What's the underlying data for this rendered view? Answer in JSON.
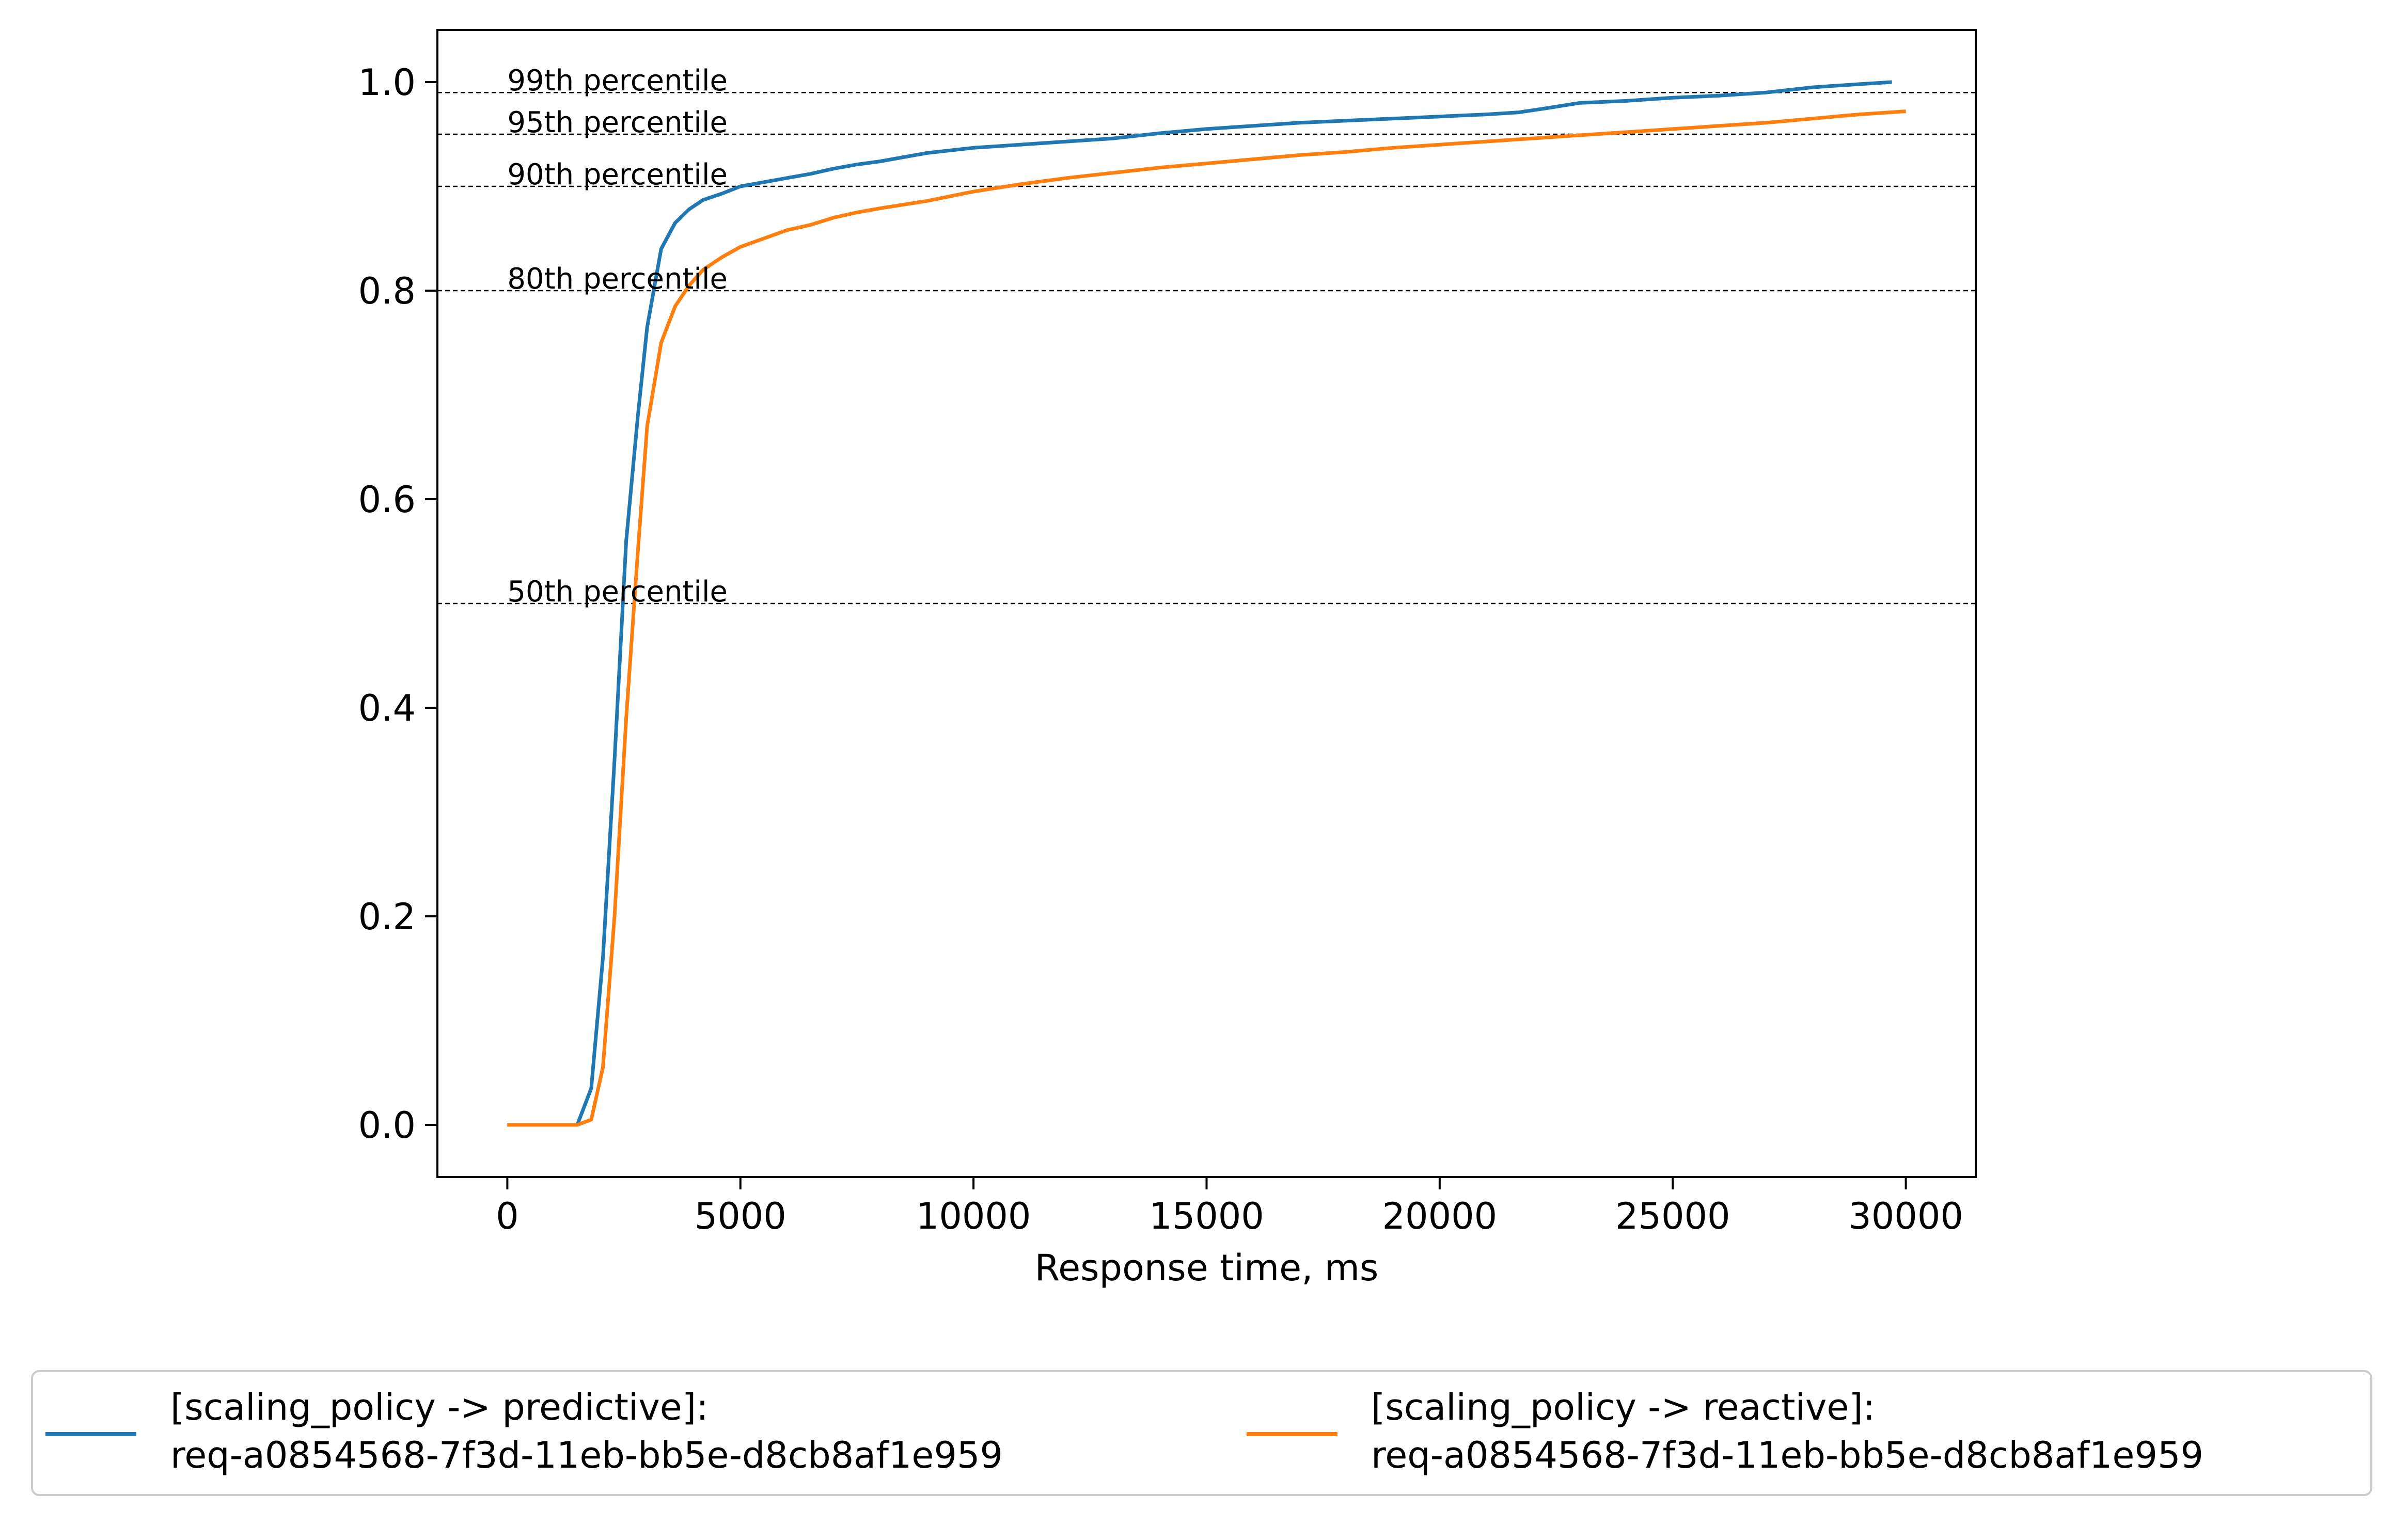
{
  "chart_data": {
    "type": "line",
    "xlabel": "Response time, ms",
    "ylabel": "",
    "xlim": [
      -1500,
      31500
    ],
    "ylim": [
      -0.05,
      1.05
    ],
    "x_ticks": [
      0,
      5000,
      10000,
      15000,
      20000,
      25000,
      30000
    ],
    "x_tick_labels": [
      "0",
      "5000",
      "10000",
      "15000",
      "20000",
      "25000",
      "30000"
    ],
    "y_ticks": [
      0.0,
      0.2,
      0.4,
      0.6,
      0.8,
      1.0
    ],
    "y_tick_labels": [
      "0.0",
      "0.2",
      "0.4",
      "0.6",
      "0.8",
      "1.0"
    ],
    "grid": false,
    "legend_position": "below",
    "percentile_lines": [
      {
        "label": "99th percentile",
        "y": 0.99
      },
      {
        "label": "95th percentile",
        "y": 0.95
      },
      {
        "label": "90th percentile",
        "y": 0.9
      },
      {
        "label": "80th percentile",
        "y": 0.8
      },
      {
        "label": "50th percentile",
        "y": 0.5
      }
    ],
    "series": [
      {
        "name": "[scaling_policy -> predictive]: req-a0854568-7f3d-11eb-bb5e-d8cb8af1e959",
        "legend_line1": "[scaling_policy -> predictive]:",
        "legend_line2": "req-a0854568-7f3d-11eb-bb5e-d8cb8af1e959",
        "color": "#1f77b4",
        "points": [
          [
            0,
            0.0
          ],
          [
            1500,
            0.0
          ],
          [
            1800,
            0.035
          ],
          [
            2050,
            0.16
          ],
          [
            2300,
            0.35
          ],
          [
            2550,
            0.56
          ],
          [
            2800,
            0.68
          ],
          [
            3000,
            0.765
          ],
          [
            3300,
            0.84
          ],
          [
            3600,
            0.865
          ],
          [
            3900,
            0.878
          ],
          [
            4200,
            0.887
          ],
          [
            4600,
            0.893
          ],
          [
            5000,
            0.9
          ],
          [
            5500,
            0.904
          ],
          [
            6000,
            0.908
          ],
          [
            6500,
            0.912
          ],
          [
            7000,
            0.917
          ],
          [
            7500,
            0.921
          ],
          [
            8000,
            0.924
          ],
          [
            9000,
            0.932
          ],
          [
            10000,
            0.937
          ],
          [
            11000,
            0.94
          ],
          [
            12000,
            0.943
          ],
          [
            13000,
            0.946
          ],
          [
            14000,
            0.951
          ],
          [
            15000,
            0.955
          ],
          [
            16000,
            0.958
          ],
          [
            17000,
            0.961
          ],
          [
            18000,
            0.963
          ],
          [
            19000,
            0.965
          ],
          [
            20000,
            0.967
          ],
          [
            21000,
            0.969
          ],
          [
            21700,
            0.971
          ],
          [
            22300,
            0.975
          ],
          [
            23000,
            0.98
          ],
          [
            24000,
            0.982
          ],
          [
            25000,
            0.985
          ],
          [
            26000,
            0.987
          ],
          [
            27000,
            0.99
          ],
          [
            28000,
            0.995
          ],
          [
            29000,
            0.998
          ],
          [
            29700,
            1.0
          ]
        ]
      },
      {
        "name": "[scaling_policy -> reactive]: req-a0854568-7f3d-11eb-bb5e-d8cb8af1e959",
        "legend_line1": "[scaling_policy -> reactive]:",
        "legend_line2": "req-a0854568-7f3d-11eb-bb5e-d8cb8af1e959",
        "color": "#ff7f0e",
        "points": [
          [
            0,
            0.0
          ],
          [
            1500,
            0.0
          ],
          [
            1800,
            0.005
          ],
          [
            2050,
            0.055
          ],
          [
            2300,
            0.2
          ],
          [
            2550,
            0.39
          ],
          [
            2800,
            0.55
          ],
          [
            3000,
            0.67
          ],
          [
            3300,
            0.75
          ],
          [
            3600,
            0.785
          ],
          [
            3900,
            0.805
          ],
          [
            4200,
            0.82
          ],
          [
            4600,
            0.832
          ],
          [
            5000,
            0.842
          ],
          [
            5500,
            0.85
          ],
          [
            6000,
            0.858
          ],
          [
            6500,
            0.863
          ],
          [
            7000,
            0.87
          ],
          [
            7500,
            0.875
          ],
          [
            8000,
            0.879
          ],
          [
            9000,
            0.886
          ],
          [
            10000,
            0.895
          ],
          [
            11000,
            0.902
          ],
          [
            12000,
            0.908
          ],
          [
            13000,
            0.913
          ],
          [
            14000,
            0.918
          ],
          [
            15000,
            0.922
          ],
          [
            16000,
            0.926
          ],
          [
            17000,
            0.93
          ],
          [
            18000,
            0.933
          ],
          [
            19000,
            0.937
          ],
          [
            20000,
            0.94
          ],
          [
            21000,
            0.943
          ],
          [
            22000,
            0.946
          ],
          [
            23000,
            0.949
          ],
          [
            24000,
            0.952
          ],
          [
            25000,
            0.955
          ],
          [
            26000,
            0.958
          ],
          [
            27000,
            0.961
          ],
          [
            28000,
            0.965
          ],
          [
            29000,
            0.969
          ],
          [
            30000,
            0.972
          ]
        ]
      }
    ]
  }
}
